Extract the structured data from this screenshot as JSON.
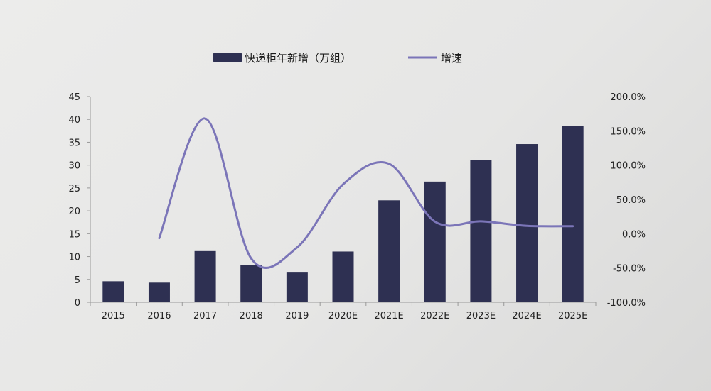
{
  "chart_data": {
    "type": "bar",
    "categories": [
      "2015",
      "2016",
      "2017",
      "2018",
      "2019",
      "2020E",
      "2021E",
      "2022E",
      "2023E",
      "2024E",
      "2025E"
    ],
    "series": [
      {
        "name": "快递柜年新增（万组）",
        "type": "bar",
        "axis": "left",
        "color": "#2e3052",
        "values": [
          4.6,
          4.3,
          11.2,
          8.1,
          6.5,
          11.1,
          22.3,
          26.4,
          31.1,
          34.6,
          38.6
        ]
      },
      {
        "name": "增速",
        "type": "line",
        "axis": "right",
        "color": "#7b75b8",
        "values": [
          null,
          -6.5,
          168.0,
          -36.0,
          -20.0,
          72.0,
          102.0,
          17.5,
          18.0,
          11.5,
          11.0
        ]
      }
    ],
    "y_left": {
      "min": 0,
      "max": 45,
      "step": 5,
      "ticks": [
        "0",
        "5",
        "10",
        "15",
        "20",
        "25",
        "30",
        "35",
        "40",
        "45"
      ]
    },
    "y_right": {
      "min": -100,
      "max": 200,
      "step": 50,
      "ticks": [
        "-100.0%",
        "-50.0%",
        "0.0%",
        "50.0%",
        "100.0%",
        "150.0%",
        "200.0%"
      ]
    },
    "legend": {
      "position": "top-center"
    },
    "grid": false
  }
}
